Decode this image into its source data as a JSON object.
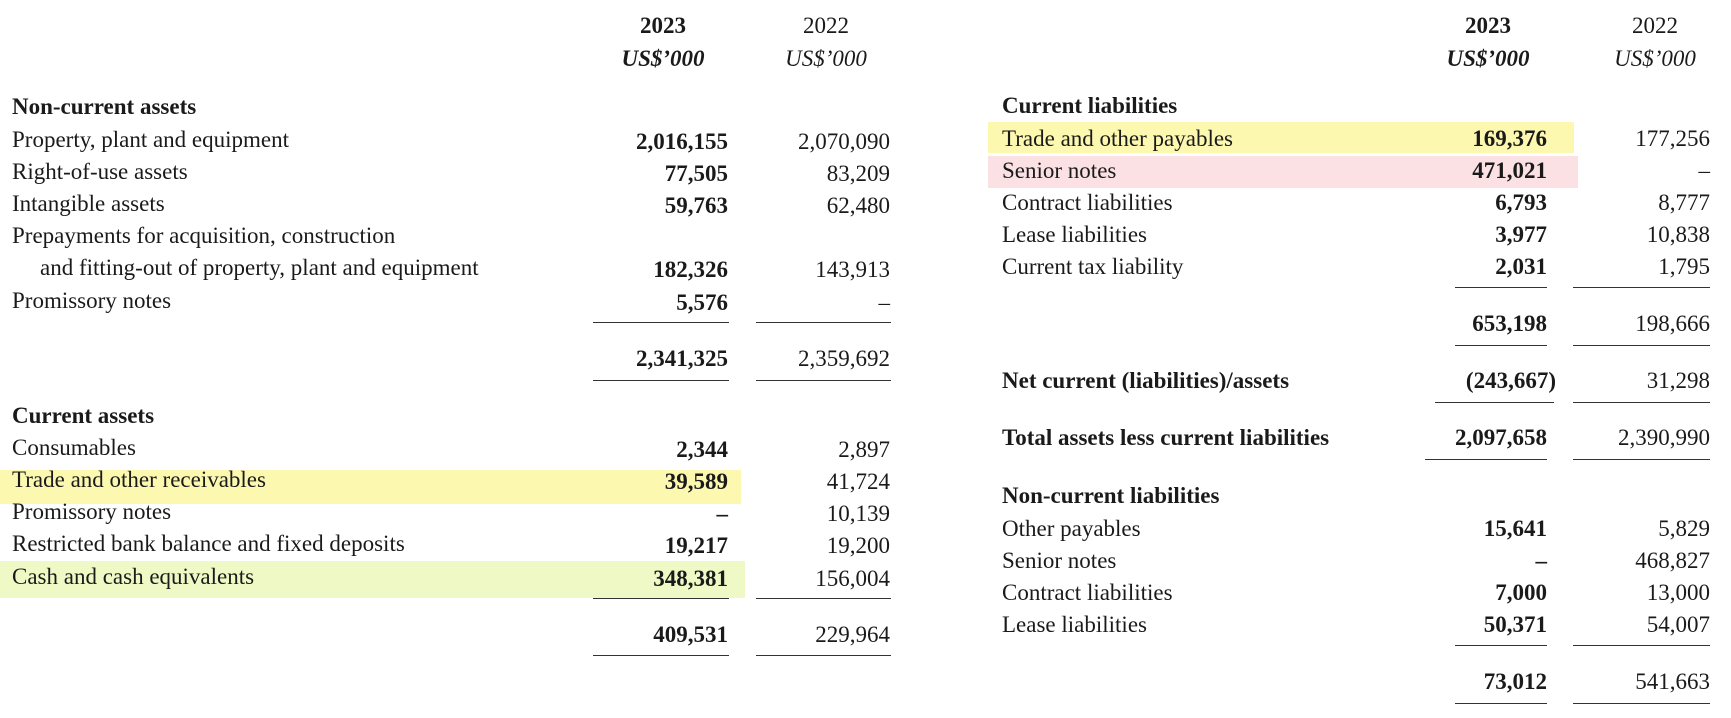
{
  "colors": {
    "highlight_yellow": "#fdf8b0",
    "highlight_pink": "#fbe1e4",
    "highlight_green": "#eef9c5"
  },
  "headers": {
    "year_current": "2023",
    "year_prior": "2022",
    "unit_current": "US$’000",
    "unit_prior": "US$’000"
  },
  "left": {
    "non_current_assets": {
      "heading": "Non-current assets",
      "rows": [
        {
          "label": "Property, plant and equipment",
          "v2023": "2,016,155",
          "v2022": "2,070,090"
        },
        {
          "label": "Right-of-use assets",
          "v2023": "77,505",
          "v2022": "83,209"
        },
        {
          "label": "Intangible assets",
          "v2023": "59,763",
          "v2022": "62,480"
        },
        {
          "label": "Prepayments for acquisition, construction",
          "label2": "and fitting-out of property, plant and equipment",
          "v2023": "182,326",
          "v2022": "143,913"
        },
        {
          "label": "Promissory notes",
          "v2023": "5,576",
          "v2022": "–"
        }
      ],
      "total_2023": "2,341,325",
      "total_2022": "2,359,692"
    },
    "current_assets": {
      "heading": "Current assets",
      "rows": [
        {
          "label": "Consumables",
          "v2023": "2,344",
          "v2022": "2,897"
        },
        {
          "label": "Trade and other receivables",
          "v2023": "39,589",
          "v2022": "41,724"
        },
        {
          "label": "Promissory notes",
          "v2023": "–",
          "v2022": "10,139"
        },
        {
          "label": "Restricted bank balance and fixed deposits",
          "v2023": "19,217",
          "v2022": "19,200"
        },
        {
          "label": "Cash and cash equivalents",
          "v2023": "348,381",
          "v2022": "156,004"
        }
      ],
      "total_2023": "409,531",
      "total_2022": "229,964"
    }
  },
  "right": {
    "current_liabilities": {
      "heading": "Current liabilities",
      "rows": [
        {
          "label": "Trade and other payables",
          "v2023": "169,376",
          "v2022": "177,256"
        },
        {
          "label": "Senior notes",
          "v2023": "471,021",
          "v2022": "–"
        },
        {
          "label": "Contract liabilities",
          "v2023": "6,793",
          "v2022": "8,777"
        },
        {
          "label": "Lease liabilities",
          "v2023": "3,977",
          "v2022": "10,838"
        },
        {
          "label": "Current tax liability",
          "v2023": "2,031",
          "v2022": "1,795"
        }
      ],
      "total_2023": "653,198",
      "total_2022": "198,666"
    },
    "net_current": {
      "label": "Net current (liabilities)/assets",
      "v2023": "(243,667)",
      "v2022": "31,298"
    },
    "total_assets_less": {
      "label": "Total assets less current liabilities",
      "v2023": "2,097,658",
      "v2022": "2,390,990"
    },
    "non_current_liabilities": {
      "heading": "Non-current liabilities",
      "rows": [
        {
          "label": "Other payables",
          "v2023": "15,641",
          "v2022": "5,829"
        },
        {
          "label": "Senior notes",
          "v2023": "–",
          "v2022": "468,827"
        },
        {
          "label": "Contract liabilities",
          "v2023": "7,000",
          "v2022": "13,000"
        },
        {
          "label": "Lease liabilities",
          "v2023": "50,371",
          "v2022": "54,007"
        }
      ],
      "total_2023": "73,012",
      "total_2022": "541,663"
    }
  }
}
